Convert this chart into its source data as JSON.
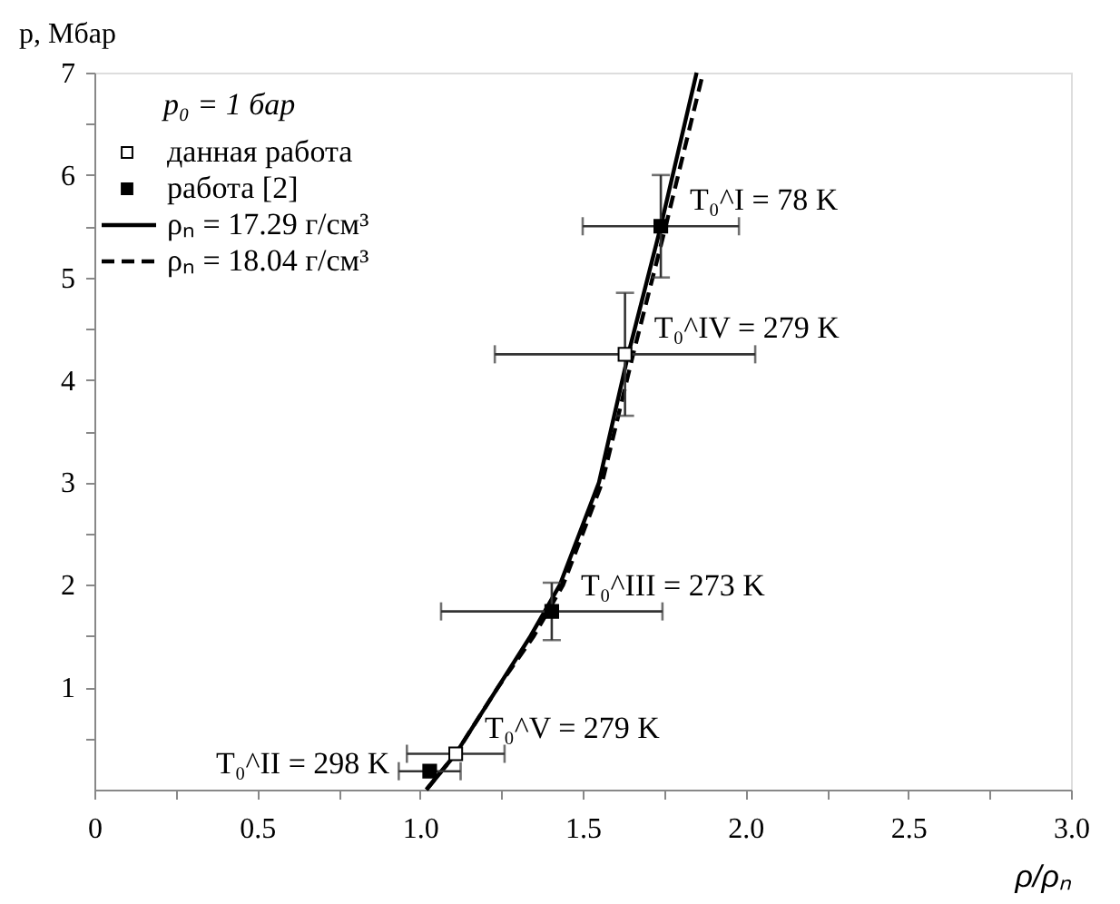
{
  "chart_data": {
    "type": "scatter",
    "xlabel": "ρ/ρₙ",
    "ylabel": "p, Мбар",
    "xlim": [
      0,
      3
    ],
    "ylim": [
      0,
      7
    ],
    "xticks": [
      0,
      {
        "value": 0.25,
        "label": null
      },
      0.5,
      {
        "value": 0.75,
        "label": null
      },
      {
        "value": 1,
        "label": "1.0"
      },
      {
        "value": 1.25,
        "label": null
      },
      1.5,
      {
        "value": 1.75,
        "label": null
      },
      {
        "value": 2,
        "label": "2.0"
      },
      {
        "value": 2.25,
        "label": null
      },
      2.5,
      {
        "value": 2.75,
        "label": null
      },
      {
        "value": 3,
        "label": "3.0"
      }
    ],
    "yticks": [
      {
        "value": 0.5,
        "label": null
      },
      1,
      {
        "value": 1.5,
        "label": null
      },
      2,
      {
        "value": 2.5,
        "label": null
      },
      3,
      {
        "value": 3.5,
        "label": null
      },
      4,
      {
        "value": 4.5,
        "label": null
      },
      5,
      {
        "value": 5.5,
        "label": null
      },
      6,
      {
        "value": 6.5,
        "label": null
      },
      7
    ],
    "grid": false,
    "legend": "top left",
    "series": [
      {
        "name": "данная работа",
        "marker": "square",
        "color": "#ffffff",
        "x": [
          1.63,
          1.11
        ],
        "values": [
          4.25,
          0.35
        ],
        "errors": [
          0.6,
          null
        ],
        "xerrors": [
          0.4,
          0.15
        ]
      },
      {
        "name": "работа [2]",
        "marker": "square",
        "color": "#000000",
        "x": [
          1.74,
          1.405,
          1.03
        ],
        "values": [
          5.5,
          1.74,
          0.18
        ],
        "errors": [
          0.5,
          0.28,
          null
        ],
        "xerrors": [
          0.24,
          0.34,
          0.095
        ]
      },
      {
        "name": "ρₙ = 17.29 г/см³",
        "type": "line",
        "line_style": "solid",
        "color": "#000000",
        "x": [
          1.02,
          1.11,
          1.24,
          1.34,
          1.43,
          1.55,
          1.64,
          1.74,
          1.85
        ],
        "values": [
          0,
          0.35,
          1.0,
          1.5,
          2.0,
          3.0,
          4.25,
          5.5,
          7.0
        ]
      },
      {
        "name": "ρₙ = 18.04 г/см³",
        "type": "line",
        "line_style": "dashed",
        "color": "#000000",
        "x": [
          1.02,
          1.11,
          1.24,
          1.35,
          1.44,
          1.56,
          1.655,
          1.755,
          1.87
        ],
        "values": [
          0,
          0.35,
          1.0,
          1.5,
          2.0,
          3.0,
          4.25,
          5.5,
          7.0
        ]
      }
    ],
    "annotations": [
      "p₀ = 1 бар",
      {
        "text": "T₀^I = 78 K",
        "x": 1.74,
        "y": 5.5
      },
      {
        "text": "T₀^IV = 279 K",
        "x": 1.63,
        "y": 4.25
      },
      {
        "text": "T₀^III = 273 K",
        "x": 1.405,
        "y": 1.74
      },
      {
        "text": "T₀^V = 279 K",
        "x": 1.11,
        "y": 0.35
      },
      {
        "text": "T₀^II = 298 K",
        "x": 1.03,
        "y": 0.18
      }
    ]
  }
}
